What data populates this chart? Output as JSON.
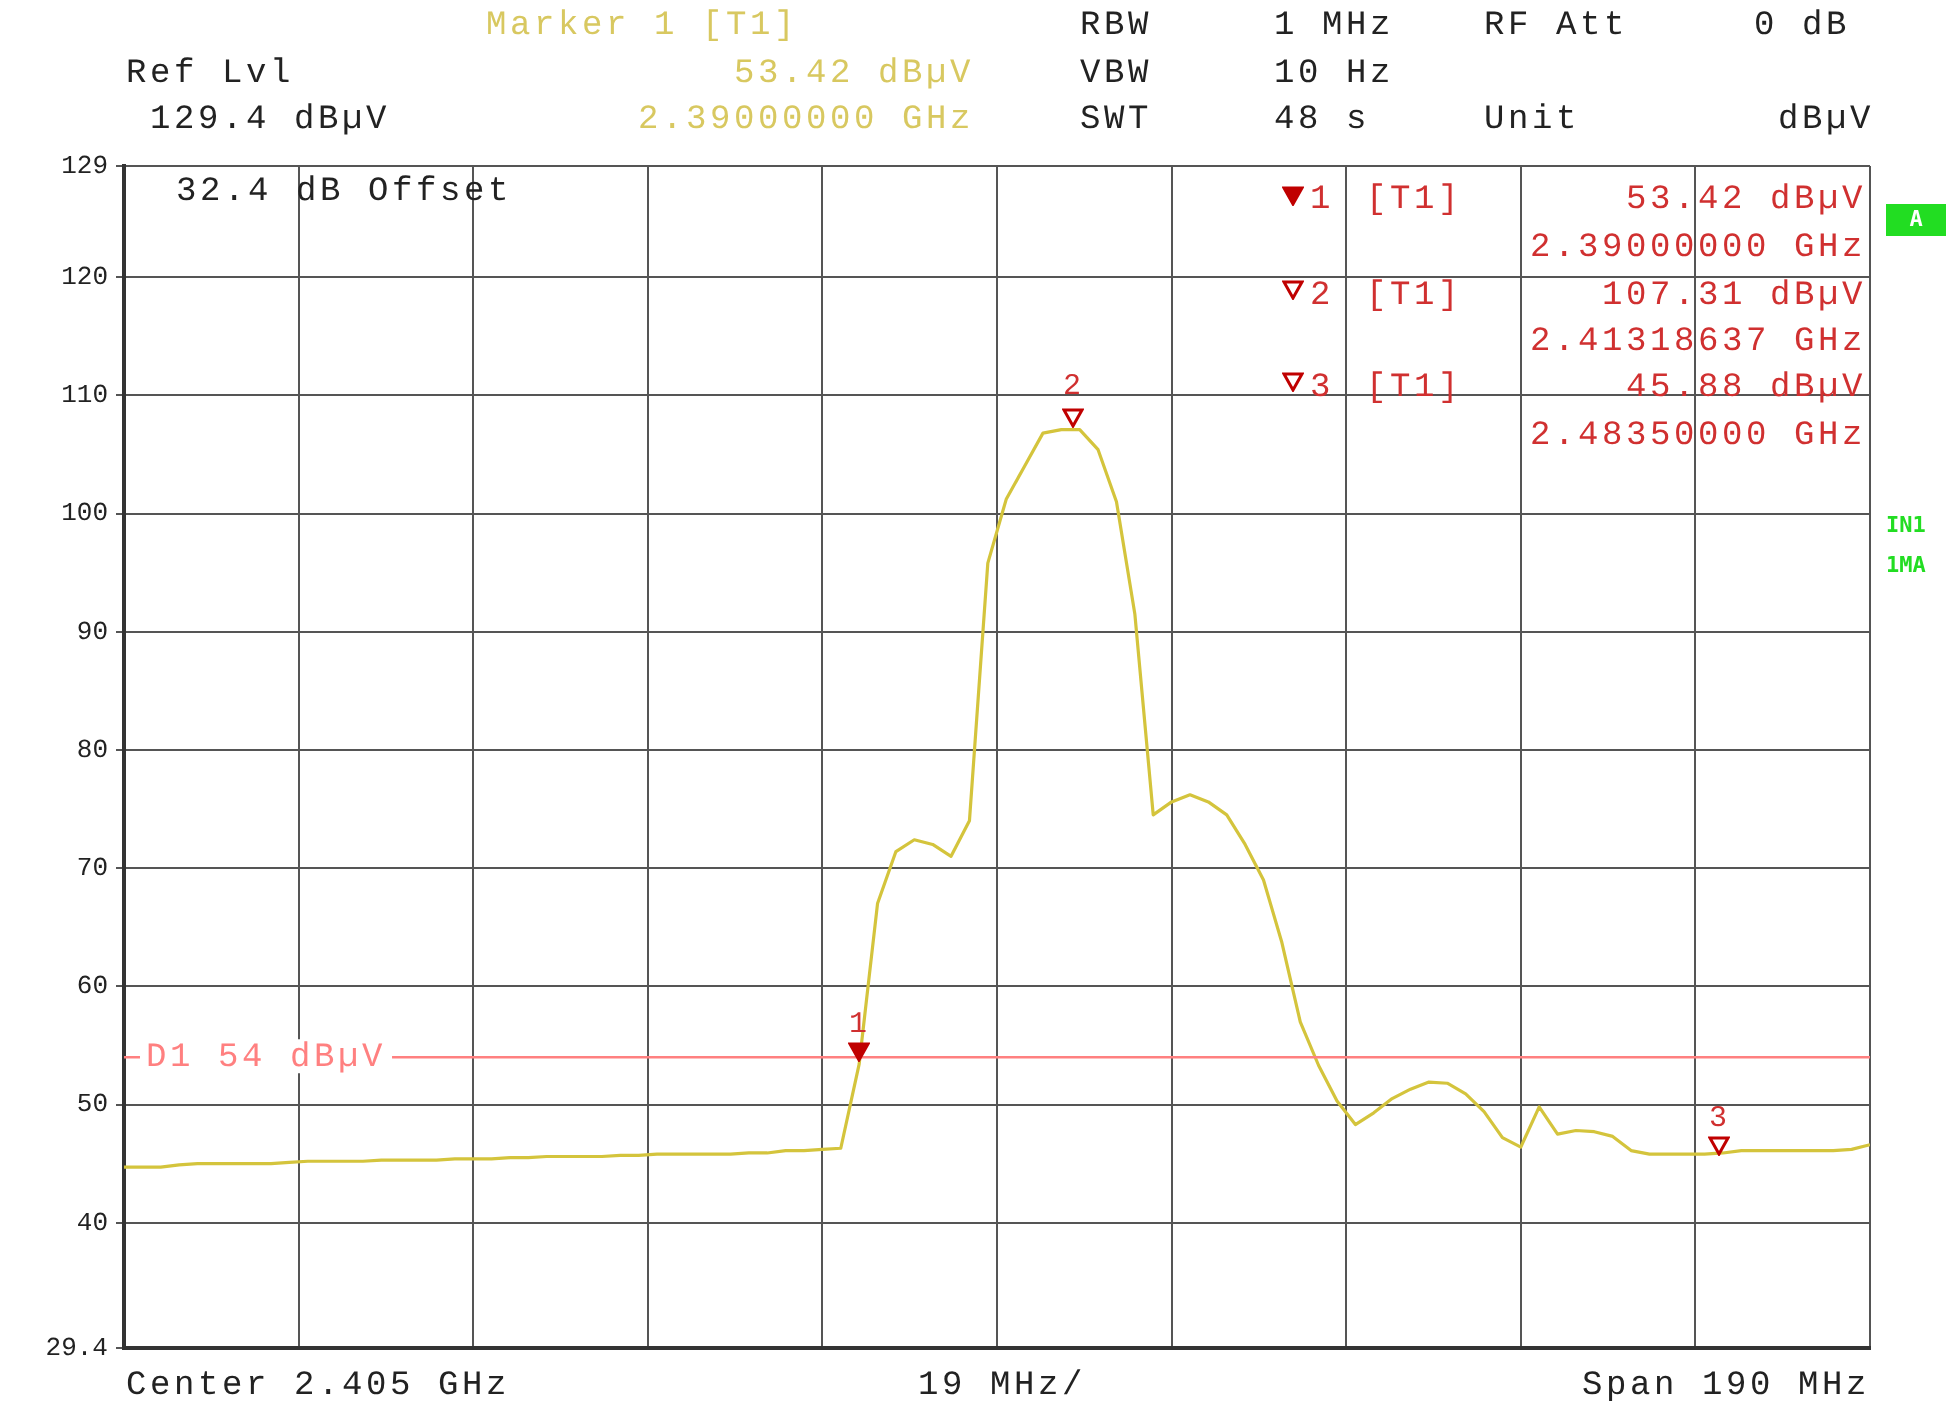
{
  "chart_data": {
    "type": "line",
    "categories": [
      null,
      null,
      null,
      null,
      null,
      null,
      null,
      null,
      null,
      null,
      null,
      null,
      null,
      null,
      null,
      null,
      null,
      null,
      null,
      null,
      null,
      null,
      null,
      null,
      null,
      null,
      null,
      null,
      null,
      null,
      null,
      null,
      null,
      null,
      null,
      null,
      null,
      null,
      null,
      null,
      null,
      null,
      null,
      null,
      null,
      null,
      null,
      null,
      null,
      null,
      null,
      null,
      null,
      null,
      null,
      null,
      null,
      null,
      null,
      null,
      null,
      null,
      null,
      null,
      null,
      null,
      null,
      null,
      null,
      null,
      null,
      null,
      null,
      null,
      null,
      null,
      null,
      null,
      null,
      null,
      null,
      null,
      null,
      null,
      null,
      null,
      null,
      null,
      null,
      null,
      null,
      null,
      null,
      null,
      null,
      null
    ],
    "series": [
      {
        "color": "#d4c43c",
        "values": [
          44.7,
          44.7,
          44.7,
          44.9,
          45.0,
          45.0,
          45.0,
          45.0,
          45.0,
          45.1,
          45.2,
          45.2,
          45.2,
          45.2,
          45.3,
          45.3,
          45.3,
          45.3,
          45.4,
          45.4,
          45.4,
          45.5,
          45.5,
          45.6,
          45.6,
          45.6,
          45.6,
          45.7,
          45.7,
          45.8,
          45.8,
          45.8,
          45.8,
          45.8,
          45.9,
          45.9,
          46.1,
          46.1,
          46.2,
          46.3,
          53.42,
          67.0,
          71.4,
          72.4,
          72.0,
          71.0,
          74.0,
          95.8,
          101.2,
          104.0,
          106.8,
          107.1,
          107.1,
          105.4,
          101.0,
          91.5,
          74.5,
          75.6,
          76.2,
          75.6,
          74.5,
          72.0,
          69.0,
          63.7,
          57.0,
          53.3,
          50.3,
          48.3,
          49.3,
          50.5,
          51.3,
          51.9,
          51.8,
          50.9,
          49.4,
          47.2,
          46.4,
          49.8,
          47.5,
          47.8,
          47.7,
          47.3,
          46.1,
          45.8,
          45.8,
          45.8,
          45.8,
          45.9,
          46.1,
          46.1,
          46.1,
          46.1,
          46.1,
          46.1,
          46.2,
          46.6
        ]
      }
    ],
    "ylim": [
      29.4,
      129.4
    ],
    "yticks": [
      29.4,
      40,
      50,
      60,
      70,
      80,
      90,
      100,
      110,
      120,
      {
        "value": 129.4,
        "label": "129"
      }
    ],
    "tick_labels": "y",
    "grid": true,
    "ref_lines": [
      {
        "axis": "y",
        "value": 54,
        "label": "D1 54 dBµV",
        "color": "#ff8080",
        "line_style": "solid"
      }
    ],
    "annotations": [
      "Marker 1 [T1]",
      "53.42 dBµV",
      "2.39000000 GHz",
      "Ref Lvl",
      "129.4 dBµV",
      "RBW",
      "1 MHz",
      "RF Att",
      "0 dB",
      "VBW",
      "10 Hz",
      "SWT",
      "48 s",
      "Unit",
      "dBµV",
      "32.4 dB Offset",
      "1",
      "[T1]",
      "53.42 dBµV",
      "2.39000000 GHz",
      "2",
      "[T1]",
      "107.31 dBµV",
      "2.41318637 GHz",
      "3",
      "[T1]",
      "45.88 dBµV",
      "2.48350000 GHz",
      "A",
      "IN1",
      "1MA",
      "Center 2.405 GHz",
      "19 MHz/",
      "Span 190 MHz",
      "1",
      "2",
      "3"
    ]
  }
}
